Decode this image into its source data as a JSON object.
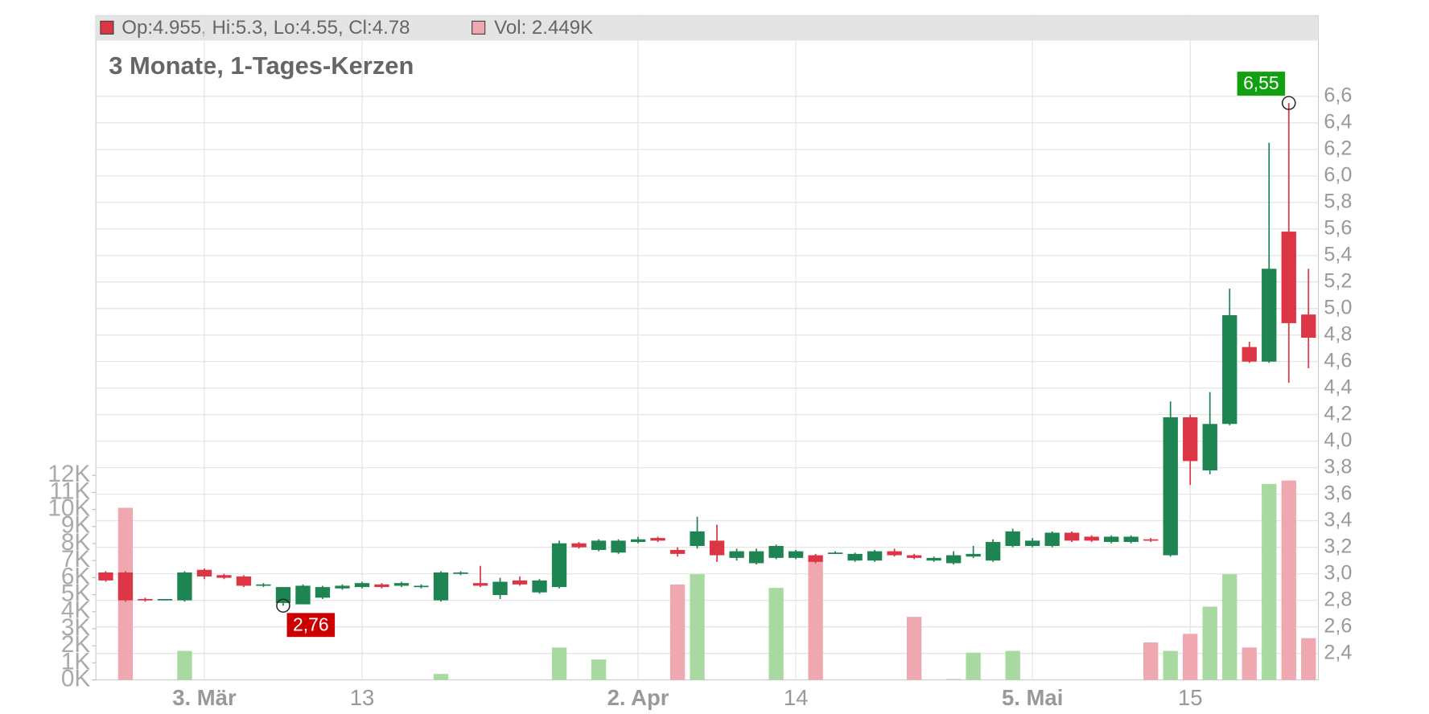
{
  "chart_data": {
    "type": "candlestick",
    "title": "3 Monate, 1-Tages-Kerzen",
    "info_text": "Op:4.955, Hi:5.3, Lo:4.55, Cl:4.78",
    "volume_text": "Vol: 2.449K",
    "categories": [
      null,
      null,
      null,
      null,
      null,
      "3. Mär",
      null,
      null,
      null,
      null,
      null,
      null,
      null,
      "13",
      null,
      null,
      null,
      null,
      null,
      null,
      null,
      null,
      null,
      null,
      null,
      null,
      null,
      "2. Apr",
      null,
      null,
      null,
      null,
      null,
      null,
      null,
      "14",
      null,
      null,
      null,
      null,
      null,
      null,
      null,
      null,
      null,
      null,
      null,
      "5. Mai",
      null,
      null,
      null,
      null,
      null,
      null,
      null,
      "15",
      null,
      null,
      null,
      null,
      null,
      null
    ],
    "open": [
      3.01,
      3.01,
      2.81,
      2.8,
      2.8,
      3.03,
      2.99,
      2.98,
      2.91,
      2.78,
      2.77,
      2.82,
      2.89,
      2.9,
      2.92,
      2.91,
      2.9,
      2.8,
      3.0,
      2.93,
      2.84,
      2.95,
      2.86,
      2.9,
      3.23,
      3.18,
      3.16,
      3.24,
      3.27,
      3.18,
      3.21,
      3.25,
      3.12,
      3.08,
      3.12,
      3.12,
      3.14,
      3.16,
      3.1,
      3.1,
      3.17,
      3.14,
      3.1,
      3.08,
      3.13,
      3.1,
      3.21,
      3.21,
      3.21,
      3.31,
      3.28,
      3.24,
      3.24,
      3.26,
      3.14,
      4.18,
      3.78,
      4.13,
      4.71,
      4.6,
      5.58,
      4.955
    ],
    "high": [
      3.02,
      3.02,
      2.82,
      2.81,
      3.02,
      3.04,
      3.0,
      2.99,
      2.93,
      2.9,
      2.92,
      2.91,
      2.92,
      2.94,
      2.93,
      2.94,
      2.92,
      3.02,
      3.02,
      3.06,
      2.97,
      2.98,
      2.96,
      3.25,
      3.24,
      3.26,
      3.26,
      3.28,
      3.28,
      3.2,
      3.43,
      3.37,
      3.19,
      3.19,
      3.22,
      3.18,
      3.15,
      3.17,
      3.16,
      3.18,
      3.19,
      3.15,
      3.13,
      3.17,
      3.21,
      3.26,
      3.34,
      3.27,
      3.32,
      3.32,
      3.29,
      3.29,
      3.29,
      3.27,
      4.3,
      4.2,
      4.37,
      5.15,
      4.75,
      6.25,
      6.55,
      5.3
    ],
    "low": [
      2.94,
      2.79,
      2.79,
      2.8,
      2.79,
      2.96,
      2.96,
      2.9,
      2.9,
      2.76,
      2.77,
      2.81,
      2.88,
      2.89,
      2.89,
      2.9,
      2.89,
      2.79,
      2.99,
      2.9,
      2.81,
      2.91,
      2.85,
      2.89,
      3.19,
      3.17,
      3.15,
      3.23,
      3.24,
      3.13,
      3.19,
      3.09,
      3.1,
      3.07,
      3.11,
      3.11,
      3.08,
      3.15,
      3.09,
      3.09,
      3.13,
      3.11,
      3.09,
      3.07,
      3.12,
      3.09,
      3.2,
      3.2,
      3.2,
      3.24,
      3.24,
      3.23,
      3.23,
      3.24,
      3.13,
      3.67,
      3.75,
      4.12,
      4.59,
      4.59,
      4.44,
      4.55
    ],
    "close": [
      2.95,
      2.8,
      2.8,
      2.81,
      3.01,
      2.98,
      2.97,
      2.91,
      2.92,
      2.9,
      2.91,
      2.9,
      2.91,
      2.93,
      2.9,
      2.93,
      2.91,
      3.01,
      3.01,
      2.91,
      2.94,
      2.92,
      2.95,
      3.23,
      3.2,
      3.25,
      3.25,
      3.26,
      3.25,
      3.15,
      3.32,
      3.14,
      3.17,
      3.17,
      3.21,
      3.17,
      3.09,
      3.16,
      3.15,
      3.17,
      3.14,
      3.12,
      3.12,
      3.14,
      3.15,
      3.24,
      3.32,
      3.25,
      3.31,
      3.25,
      3.25,
      3.28,
      3.28,
      3.25,
      4.18,
      3.85,
      4.13,
      4.95,
      4.6,
      5.3,
      4.89,
      4.78
    ],
    "volume": [
      0,
      10100,
      0,
      0,
      1700,
      0,
      0,
      0,
      0,
      0,
      0,
      0,
      0,
      0,
      0,
      0,
      0,
      350,
      0,
      0,
      0,
      0,
      0,
      1900,
      0,
      1200,
      0,
      0,
      0,
      5600,
      6200,
      0,
      0,
      0,
      5400,
      0,
      7000,
      0,
      0,
      0,
      0,
      3700,
      0,
      50,
      1600,
      0,
      1700,
      0,
      0,
      0,
      0,
      0,
      0,
      2200,
      1700,
      2700,
      4300,
      6200,
      1900,
      11500,
      11700,
      2449
    ],
    "up_color": "#1e8451",
    "down_color": "#dc3545",
    "volume_up_color": "#a8d9a0",
    "volume_down_color": "#f0a8b0",
    "ylim": [
      2.2,
      7.0
    ],
    "yticks": [
      {
        "value": 2.4,
        "label": "2,4"
      },
      {
        "value": 2.6,
        "label": "2,6"
      },
      {
        "value": 2.8,
        "label": "2,8"
      },
      {
        "value": 3.0,
        "label": "3,0"
      },
      {
        "value": 3.2,
        "label": "3,2"
      },
      {
        "value": 3.4,
        "label": "3,4"
      },
      {
        "value": 3.6,
        "label": "3,6"
      },
      {
        "value": 3.8,
        "label": "3,8"
      },
      {
        "value": 4.0,
        "label": "4,0"
      },
      {
        "value": 4.2,
        "label": "4,2"
      },
      {
        "value": 4.4,
        "label": "4,4"
      },
      {
        "value": 4.6,
        "label": "4,6"
      },
      {
        "value": 4.8,
        "label": "4,8"
      },
      {
        "value": 5.0,
        "label": "5,0"
      },
      {
        "value": 5.2,
        "label": "5,2"
      },
      {
        "value": 5.4,
        "label": "5,4"
      },
      {
        "value": 5.6,
        "label": "5,6"
      },
      {
        "value": 5.8,
        "label": "5,8"
      },
      {
        "value": 6.0,
        "label": "6,0"
      },
      {
        "value": 6.2,
        "label": "6,2"
      },
      {
        "value": 6.4,
        "label": "6,4"
      },
      {
        "value": 6.6,
        "label": "6,6"
      }
    ],
    "y2lim": [
      0,
      12000
    ],
    "y2ticks": [
      {
        "value": 0,
        "label": "0K"
      },
      {
        "value": 1000,
        "label": "1K"
      },
      {
        "value": 2000,
        "label": "2K"
      },
      {
        "value": 3000,
        "label": "3K"
      },
      {
        "value": 4000,
        "label": "4K"
      },
      {
        "value": 5000,
        "label": "5K"
      },
      {
        "value": 6000,
        "label": "6K"
      },
      {
        "value": 7000,
        "label": "7K"
      },
      {
        "value": 8000,
        "label": "8K"
      },
      {
        "value": 9000,
        "label": "9K"
      },
      {
        "value": 10000,
        "label": "10K"
      },
      {
        "value": 11000,
        "label": "11K"
      },
      {
        "value": 12000,
        "label": "12K"
      }
    ],
    "grid": true,
    "annotations": [
      {
        "label": "6,55",
        "value": 6.55,
        "color": "#10a010"
      },
      {
        "label": "2,76",
        "value": 2.76,
        "color": "#cc0000"
      }
    ]
  }
}
